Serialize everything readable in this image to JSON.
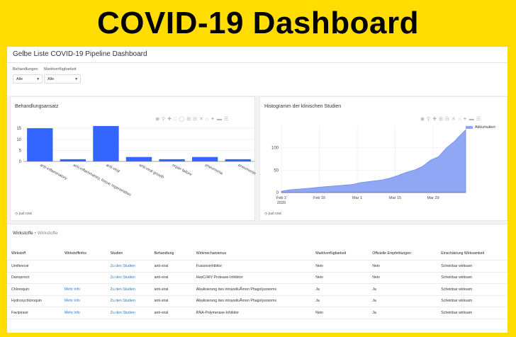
{
  "banner": {
    "title": "COVID-19 Dashboard"
  },
  "app": {
    "title": "Gelbe Liste COVID-19 Pipeline Dashboard"
  },
  "filters": [
    {
      "label": "Behandlungen",
      "value": "Alle"
    },
    {
      "label": "Marktverfügbarkeit",
      "value": "Alle"
    }
  ],
  "cards": {
    "left": {
      "title": "Behandlungsansatz",
      "updated": "just now"
    },
    "right": {
      "title": "Histogramm der klinischen Studien",
      "updated": "just now"
    }
  },
  "chart_data": [
    {
      "type": "bar",
      "title": "Behandlungsansatz",
      "categories": [
        "anti-inflammatory",
        "anti-inflammatory, tissue regeneration",
        "anti-viral",
        "anti-viral growth",
        "organ failure",
        "pneumonia",
        "pneumonie"
      ],
      "values": [
        15,
        1,
        16,
        2,
        1,
        2,
        1
      ],
      "yticks": [
        0,
        5,
        10,
        15
      ],
      "ylim": [
        0,
        16
      ],
      "color": "#3366ff",
      "grid": true
    },
    {
      "type": "area",
      "title": "Histogramm der klinischen Studien",
      "series": [
        {
          "name": "Akkumuliert",
          "color": "#8fa7f5"
        }
      ],
      "x_ticks": [
        "Feb 2\n2020",
        "Feb 16",
        "Mar 1",
        "Mar 15",
        "Mar 29"
      ],
      "yticks": [
        0,
        50,
        100
      ],
      "ylim": [
        0,
        150
      ],
      "x": [
        "2020-02-02",
        "2020-02-05",
        "2020-02-09",
        "2020-02-13",
        "2020-02-16",
        "2020-02-20",
        "2020-02-24",
        "2020-02-28",
        "2020-03-02",
        "2020-03-06",
        "2020-03-10",
        "2020-03-13",
        "2020-03-16",
        "2020-03-19",
        "2020-03-22",
        "2020-03-25",
        "2020-03-28",
        "2020-03-31",
        "2020-04-03",
        "2020-04-06",
        "2020-04-08",
        "2020-04-10"
      ],
      "y": [
        3,
        6,
        8,
        10,
        12,
        14,
        16,
        18,
        22,
        25,
        28,
        32,
        38,
        45,
        50,
        58,
        72,
        80,
        100,
        115,
        128,
        140
      ],
      "legend": "top-right",
      "grid": true
    }
  ],
  "table": {
    "title": "Wirkstoffe",
    "subtitle": "Wirkstoffe",
    "headers": [
      "Wirkstoff",
      "Wirkstoffinfos",
      "Studien",
      "Behandlung",
      "Wirkmechanismus",
      "Marktverfügbarkeit",
      "Offizielle Empfehlungen",
      "Einschätzung Wirksamkeit"
    ],
    "rows": [
      [
        "Umifenovir",
        "",
        "Zu den Studien",
        "anti-viral",
        "Fusionsinhibitor",
        "Nein",
        "Nein",
        "Scheinbar wirksam"
      ],
      [
        "Danoprevir",
        "",
        "Zu den Studien",
        "anti-viral",
        "HepC/HIV Protease-Inhibitor",
        "Nein",
        "Nein",
        "Scheinbar wirksam"
      ],
      [
        "Chloroquin",
        "Mehr Info",
        "Zu den Studien",
        "anti-viral",
        "Alkalisierung des intrazelluÃ¤ren Phagolysosoms",
        "Ja",
        "Ja",
        "Scheinbar wirksam"
      ],
      [
        "Hydroxychloroquin",
        "Mehr Info",
        "Zu den Studien",
        "anti-viral",
        "Alkalisierung des intrazelluÃ¤ren Phagolysosoms",
        "Ja",
        "Ja",
        "Scheinbar wirksam"
      ],
      [
        "Favipiravir",
        "Mehr Info",
        "Zu den Studien",
        "anti-viral",
        "RNA-Polymerase-Inhibitor",
        "Nein",
        "Ja",
        "Scheinbar wirksam"
      ]
    ]
  }
}
